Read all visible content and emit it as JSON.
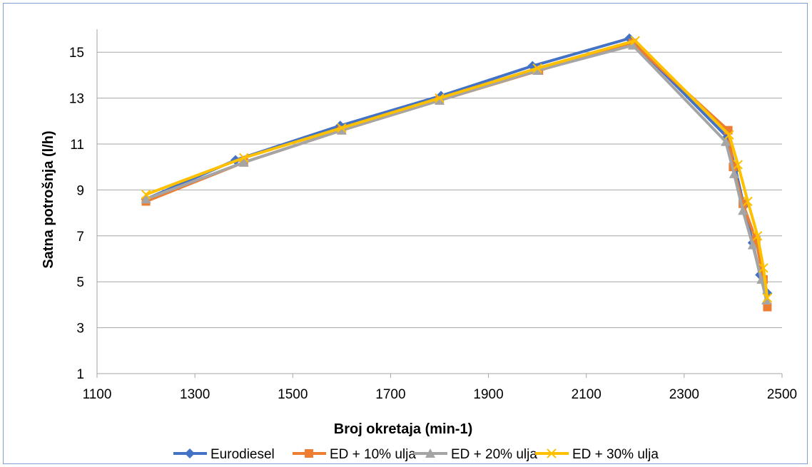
{
  "chart_data": {
    "type": "scatter",
    "title": "",
    "xlabel": "Broj okretaja (min-1)",
    "ylabel": "Satna potrošnja (l/h)",
    "xlim": [
      1100,
      2500
    ],
    "ylim": [
      1,
      16
    ],
    "x_ticks": [
      "1100",
      "1300",
      "1500",
      "1700",
      "1900",
      "2100",
      "2300",
      "2500"
    ],
    "y_ticks": [
      "1",
      "3",
      "5",
      "7",
      "9",
      "11",
      "13",
      "15"
    ],
    "grid": "horizontal",
    "legend_position": "bottom",
    "series": [
      {
        "name": "Eurodiesel",
        "color": "#4472c4",
        "marker": "diamond",
        "points": [
          [
            1200,
            8.6
          ],
          [
            1383,
            10.3
          ],
          [
            1597,
            11.8
          ],
          [
            1803,
            13.1
          ],
          [
            1990,
            14.4
          ],
          [
            2188,
            15.6
          ],
          [
            2388,
            11.3
          ],
          [
            2405,
            9.9
          ],
          [
            2422,
            8.3
          ],
          [
            2440,
            6.7
          ],
          [
            2455,
            5.3
          ],
          [
            2470,
            4.5
          ]
        ]
      },
      {
        "name": "ED + 10% ulja",
        "color": "#ed7d31",
        "marker": "square",
        "points": [
          [
            1200,
            8.5
          ],
          [
            1400,
            10.2
          ],
          [
            1600,
            11.6
          ],
          [
            1800,
            12.9
          ],
          [
            2003,
            14.2
          ],
          [
            2195,
            15.4
          ],
          [
            2390,
            11.6
          ],
          [
            2400,
            10.0
          ],
          [
            2420,
            8.4
          ],
          [
            2447,
            6.8
          ],
          [
            2462,
            5.1
          ],
          [
            2470,
            3.9
          ]
        ]
      },
      {
        "name": "ED + 20% ulja",
        "color": "#a5a5a5",
        "marker": "triangle",
        "points": [
          [
            1200,
            8.6
          ],
          [
            1400,
            10.2
          ],
          [
            1600,
            11.6
          ],
          [
            1800,
            12.9
          ],
          [
            2000,
            14.2
          ],
          [
            2195,
            15.3
          ],
          [
            2385,
            11.1
          ],
          [
            2402,
            9.7
          ],
          [
            2420,
            8.1
          ],
          [
            2440,
            6.6
          ],
          [
            2458,
            5.1
          ],
          [
            2468,
            4.2
          ]
        ]
      },
      {
        "name": "ED + 30% ulja",
        "color": "#ffc000",
        "marker": "x",
        "points": [
          [
            1200,
            8.8
          ],
          [
            1400,
            10.4
          ],
          [
            1600,
            11.7
          ],
          [
            1800,
            13.0
          ],
          [
            2000,
            14.3
          ],
          [
            2200,
            15.5
          ],
          [
            2392,
            11.4
          ],
          [
            2410,
            10.1
          ],
          [
            2430,
            8.5
          ],
          [
            2450,
            7.0
          ],
          [
            2462,
            5.6
          ],
          [
            2470,
            4.3
          ]
        ]
      }
    ]
  }
}
